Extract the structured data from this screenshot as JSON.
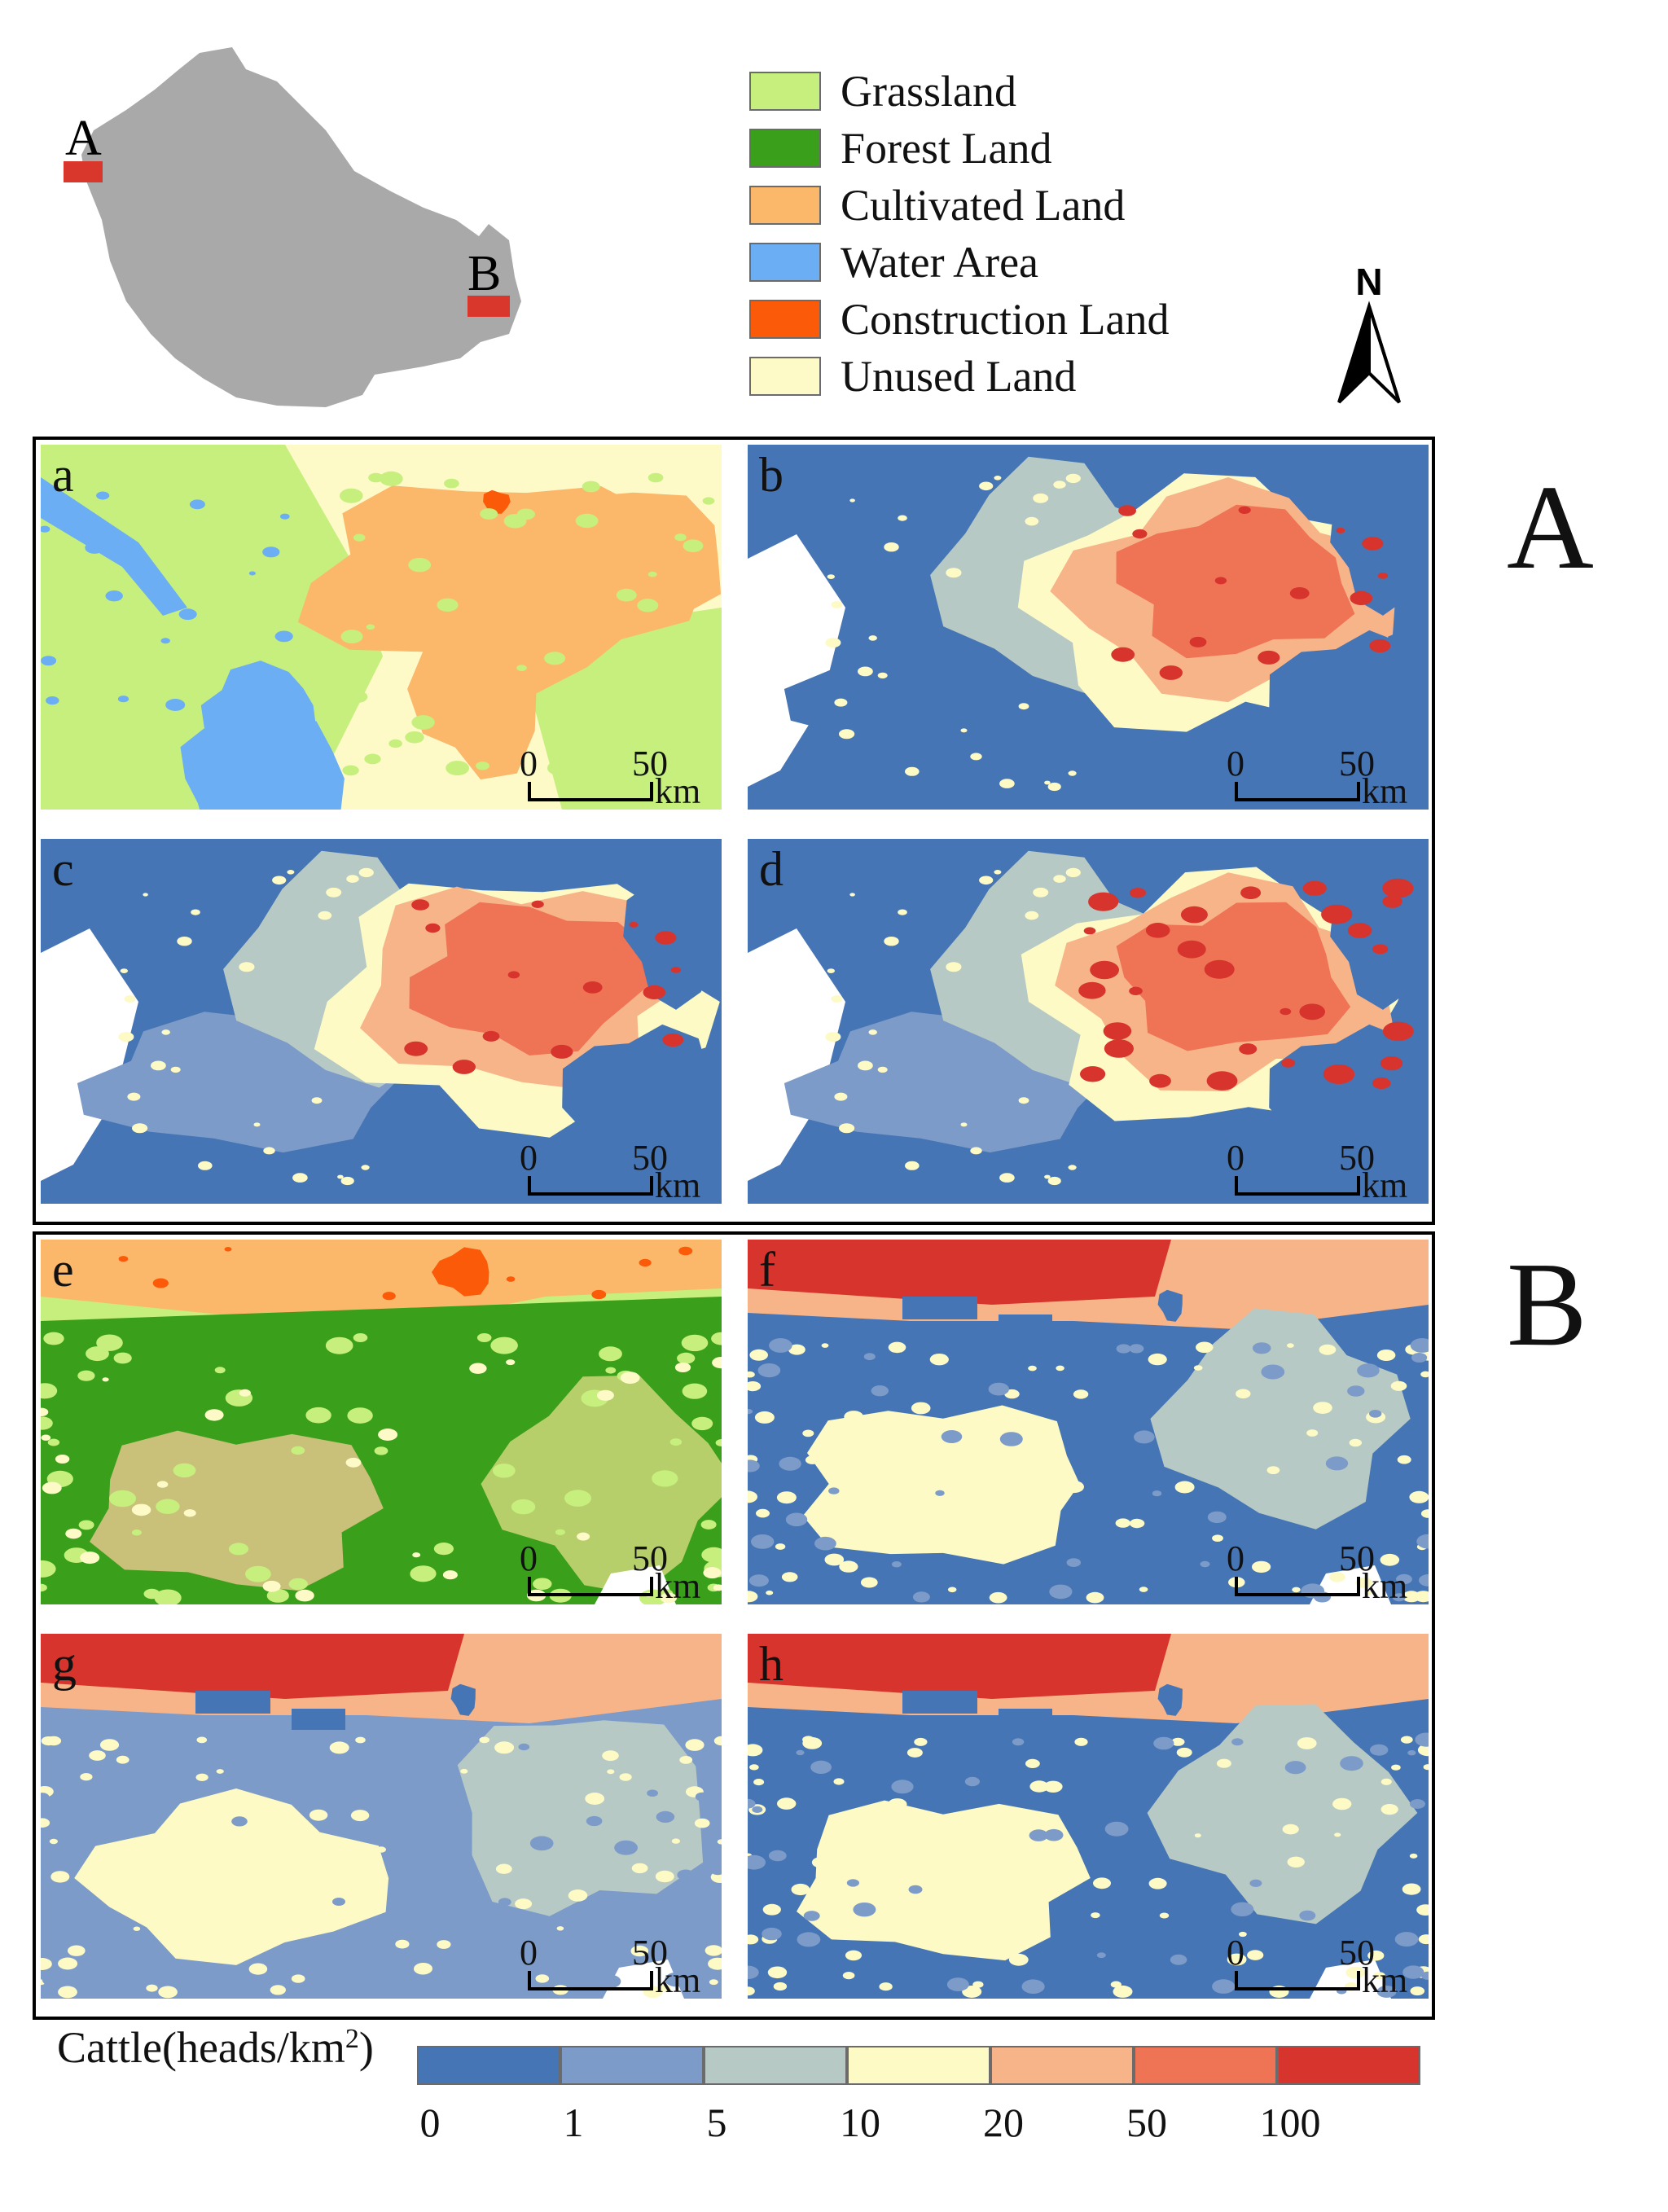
{
  "legend": {
    "items": [
      {
        "label": "Grassland",
        "color": "#c6ef7e"
      },
      {
        "label": "Forest Land",
        "color": "#3a9f1a"
      },
      {
        "label": "Cultivated Land",
        "color": "#fbb86b"
      },
      {
        "label": "Water Area",
        "color": "#6baef3"
      },
      {
        "label": "Construction Land",
        "color": "#fb5a08"
      },
      {
        "label": "Unused Land",
        "color": "#fdfac8"
      }
    ]
  },
  "inset_map": {
    "region_color": "#a9a9a9",
    "marker_color": "#d9372b",
    "markers": [
      {
        "label": "A"
      },
      {
        "label": "B"
      }
    ]
  },
  "north_arrow": {
    "label": "N"
  },
  "regions": [
    {
      "label": "A"
    },
    {
      "label": "B"
    }
  ],
  "panels": [
    {
      "letter": "a",
      "type": "landuse"
    },
    {
      "letter": "b",
      "type": "cattle"
    },
    {
      "letter": "c",
      "type": "cattle"
    },
    {
      "letter": "d",
      "type": "cattle"
    },
    {
      "letter": "e",
      "type": "landuse"
    },
    {
      "letter": "f",
      "type": "cattle"
    },
    {
      "letter": "g",
      "type": "cattle"
    },
    {
      "letter": "h",
      "type": "cattle"
    }
  ],
  "scalebar": {
    "zero": "0",
    "fifty": "50",
    "unit": "km"
  },
  "colorbar": {
    "title_prefix": "Cattle(heads/km",
    "title_sup": "2",
    "title_suffix": ")",
    "colors": [
      "#4575b5",
      "#7d9bc8",
      "#b7c9c4",
      "#fdfac5",
      "#f8b489",
      "#ef7355",
      "#d6342c"
    ],
    "ticks": [
      "0",
      "1",
      "5",
      "10",
      "20",
      "50",
      "100"
    ]
  }
}
